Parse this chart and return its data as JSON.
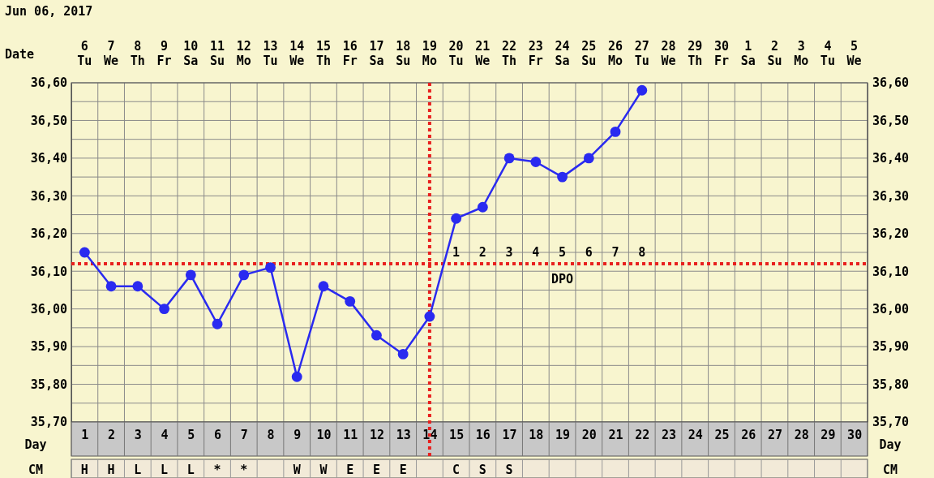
{
  "chart_data": {
    "type": "line",
    "title": "Jun 06, 2017",
    "xlabel": "Day",
    "x": [
      1,
      2,
      3,
      4,
      5,
      6,
      7,
      8,
      9,
      10,
      11,
      12,
      13,
      14,
      15,
      16,
      17,
      18,
      19,
      20,
      21,
      22
    ],
    "series": [
      {
        "color": "#2a2af0",
        "values": [
          36.15,
          36.06,
          36.06,
          36.0,
          36.09,
          35.96,
          36.09,
          36.11,
          35.82,
          36.06,
          36.02,
          35.93,
          35.88,
          35.98,
          36.24,
          36.27,
          36.4,
          36.39,
          36.35,
          36.4,
          36.47,
          36.58
        ]
      }
    ],
    "marker": "circle",
    "line_style": "solid",
    "grid": true,
    "xlim": [
      0.5,
      30.5
    ],
    "xticks": [
      1,
      2,
      3,
      4,
      5,
      6,
      7,
      8,
      9,
      10,
      11,
      12,
      13,
      14,
      15,
      16,
      17,
      18,
      19,
      20,
      21,
      22,
      23,
      24,
      25,
      26,
      27,
      28,
      29,
      30
    ],
    "ylim": [
      35.7,
      36.6
    ],
    "yticks": [
      {
        "value": 35.7,
        "label": "35,70"
      },
      {
        "value": 35.75,
        "label": null
      },
      {
        "value": 35.8,
        "label": "35,80"
      },
      {
        "value": 35.85,
        "label": null
      },
      {
        "value": 35.9,
        "label": "35,90"
      },
      {
        "value": 35.95,
        "label": null
      },
      {
        "value": 36.0,
        "label": "36,00"
      },
      {
        "value": 36.05,
        "label": null
      },
      {
        "value": 36.1,
        "label": "36,10"
      },
      {
        "value": 36.15,
        "label": null
      },
      {
        "value": 36.2,
        "label": "36,20"
      },
      {
        "value": 36.25,
        "label": null
      },
      {
        "value": 36.3,
        "label": "36,30"
      },
      {
        "value": 36.35,
        "label": null
      },
      {
        "value": 36.4,
        "label": "36,40"
      },
      {
        "value": 36.45,
        "label": null
      },
      {
        "value": 36.5,
        "label": "36,50"
      },
      {
        "value": 36.55,
        "label": null
      },
      {
        "value": 36.6,
        "label": "36,60"
      }
    ],
    "y2lim": [
      35.7,
      36.6
    ],
    "y2ticks": [
      {
        "value": 35.7,
        "label": "35,70"
      },
      {
        "value": 35.8,
        "label": "35,80"
      },
      {
        "value": 35.9,
        "label": "35,90"
      },
      {
        "value": 36.0,
        "label": "36,00"
      },
      {
        "value": 36.1,
        "label": "36,10"
      },
      {
        "value": 36.2,
        "label": "36,20"
      },
      {
        "value": 36.3,
        "label": "36,30"
      },
      {
        "value": 36.4,
        "label": "36,40"
      },
      {
        "value": 36.5,
        "label": "36,50"
      },
      {
        "value": 36.6,
        "label": "36,60"
      }
    ],
    "ref_lines": [
      {
        "axis": "y",
        "value": 36.12,
        "color": "#e8201e",
        "line_style": "dotted"
      },
      {
        "axis": "x",
        "value": 14,
        "color": "#e8201e",
        "line_style": "dotted"
      }
    ],
    "annotations": [
      "Date",
      "6 Tu",
      "7 We",
      "8 Th",
      "9 Fr",
      "10 Sa",
      "11 Su",
      "12 Mo",
      "13 Tu",
      "14 We",
      "15 Th",
      "16 Fr",
      "17 Sa",
      "18 Su",
      "19 Mo",
      "20 Tu",
      "21 We",
      "22 Th",
      "23 Fr",
      "24 Sa",
      "25 Su",
      "26 Mo",
      "27 Tu",
      "28 We",
      "29 Th",
      "30 Fr",
      "1 Sa",
      "2 Su",
      "3 Mo",
      "4 Tu",
      "5 We",
      "CM",
      "H",
      "H",
      "L",
      "L",
      "L",
      "*",
      "*",
      "W",
      "W",
      "E",
      "E",
      "E",
      "C",
      "S",
      "S",
      "1",
      "2",
      "3",
      "4",
      "5",
      "6",
      "7",
      "8",
      "DPO"
    ]
  }
}
